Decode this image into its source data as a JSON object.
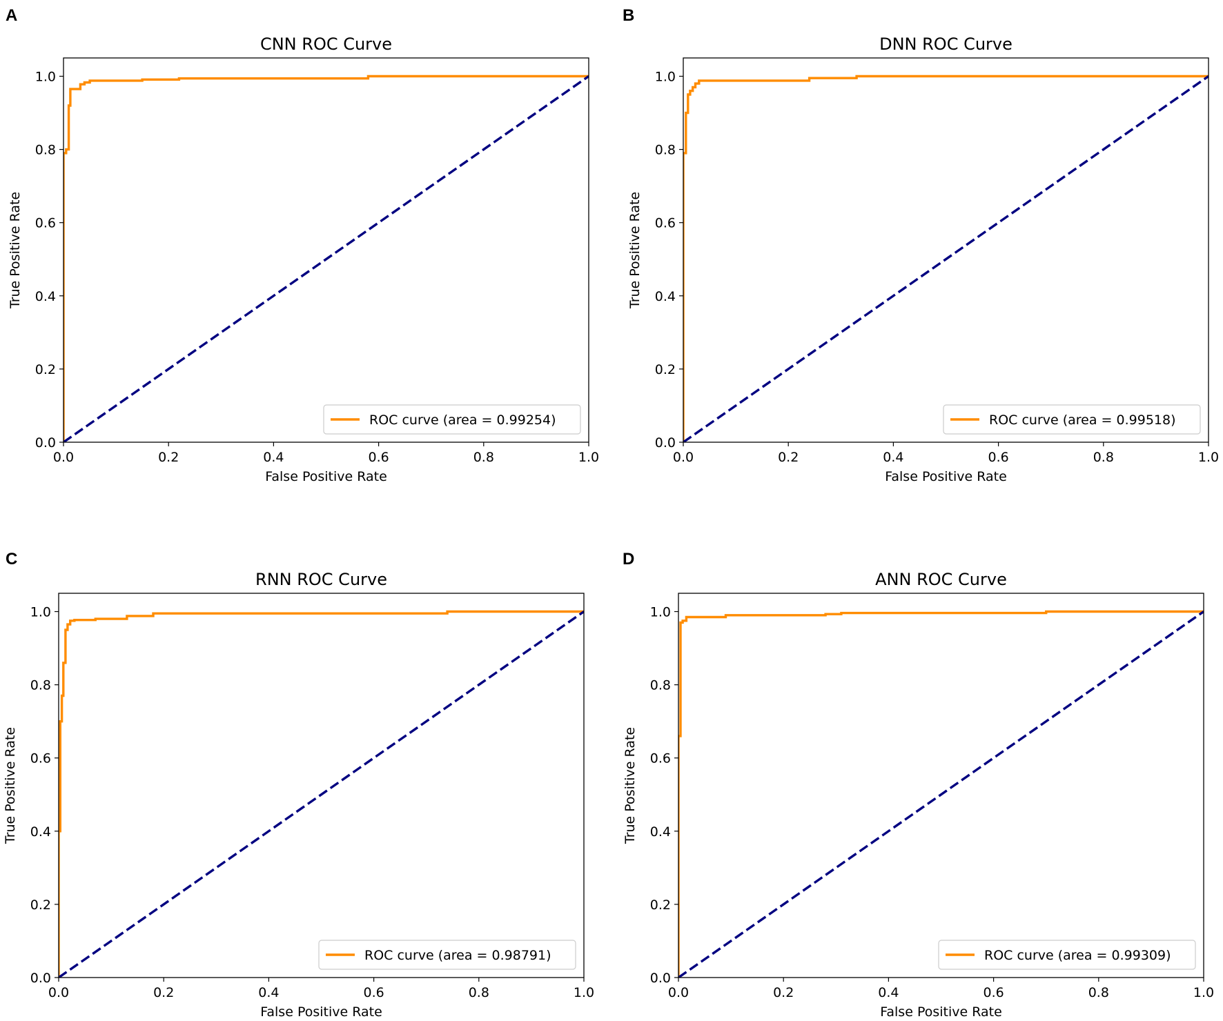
{
  "colors": {
    "roc": "#ff8c00",
    "diagonal": "#000080",
    "axes": "#000000",
    "legend_border": "#cccccc"
  },
  "chart_data": [
    {
      "panel": "A",
      "type": "line",
      "title": "CNN ROC Curve",
      "xlabel": "False Positive Rate",
      "ylabel": "True Positive Rate",
      "xlim": [
        -0.0,
        1.0
      ],
      "ylim": [
        0.0,
        1.05
      ],
      "xticks": [
        "0.0",
        "0.2",
        "0.4",
        "0.6",
        "0.8",
        "1.0"
      ],
      "yticks": [
        "0.0",
        "0.2",
        "0.4",
        "0.6",
        "0.8",
        "1.0"
      ],
      "grid": false,
      "legend_position": "lower right",
      "series": [
        {
          "name": "ROC curve (area = 0.99254)",
          "fpr": [
            0,
            0,
            0.005,
            0.005,
            0.01,
            0.01,
            0.013,
            0.013,
            0.032,
            0.032,
            0.04,
            0.04,
            0.05,
            0.05,
            0.15,
            0.15,
            0.22,
            0.22,
            0.58,
            0.58,
            1.0
          ],
          "tpr": [
            0,
            0.79,
            0.79,
            0.8,
            0.8,
            0.92,
            0.92,
            0.965,
            0.965,
            0.978,
            0.978,
            0.983,
            0.983,
            0.988,
            0.988,
            0.991,
            0.991,
            0.994,
            0.994,
            1.0,
            1.0
          ]
        },
        {
          "name": "chance",
          "fpr": [
            0,
            1
          ],
          "tpr": [
            0,
            1
          ]
        }
      ]
    },
    {
      "panel": "B",
      "type": "line",
      "title": "DNN ROC Curve",
      "xlabel": "False Positive Rate",
      "ylabel": "True Positive Rate",
      "xlim": [
        -0.0,
        1.0
      ],
      "ylim": [
        0.0,
        1.05
      ],
      "xticks": [
        "0.0",
        "0.2",
        "0.4",
        "0.6",
        "0.8",
        "1.0"
      ],
      "yticks": [
        "0.0",
        "0.2",
        "0.4",
        "0.6",
        "0.8",
        "1.0"
      ],
      "grid": false,
      "legend_position": "lower right",
      "series": [
        {
          "name": "ROC curve (area = 0.99518)",
          "fpr": [
            0,
            0,
            0.005,
            0.005,
            0.009,
            0.009,
            0.013,
            0.013,
            0.018,
            0.018,
            0.023,
            0.023,
            0.03,
            0.03,
            0.24,
            0.24,
            0.33,
            0.33,
            1.0
          ],
          "tpr": [
            0,
            0.79,
            0.79,
            0.9,
            0.9,
            0.95,
            0.95,
            0.96,
            0.96,
            0.97,
            0.97,
            0.98,
            0.98,
            0.988,
            0.988,
            0.995,
            0.995,
            1.0,
            1.0
          ]
        },
        {
          "name": "chance",
          "fpr": [
            0,
            1
          ],
          "tpr": [
            0,
            1
          ]
        }
      ]
    },
    {
      "panel": "C",
      "type": "line",
      "title": "RNN ROC Curve",
      "xlabel": "False Positive Rate",
      "ylabel": "True Positive Rate",
      "xlim": [
        -0.0,
        1.0
      ],
      "ylim": [
        0.0,
        1.05
      ],
      "xticks": [
        "0.0",
        "0.2",
        "0.4",
        "0.6",
        "0.8",
        "1.0"
      ],
      "yticks": [
        "0.0",
        "0.2",
        "0.4",
        "0.6",
        "0.8",
        "1.0"
      ],
      "grid": false,
      "legend_position": "lower right",
      "series": [
        {
          "name": "ROC curve (area = 0.98791)",
          "fpr": [
            0,
            0,
            0.003,
            0.003,
            0.006,
            0.006,
            0.009,
            0.009,
            0.013,
            0.013,
            0.017,
            0.017,
            0.022,
            0.022,
            0.03,
            0.03,
            0.07,
            0.07,
            0.13,
            0.13,
            0.18,
            0.18,
            0.74,
            0.74,
            1.0
          ],
          "tpr": [
            0,
            0.4,
            0.4,
            0.7,
            0.7,
            0.77,
            0.77,
            0.86,
            0.86,
            0.95,
            0.95,
            0.965,
            0.965,
            0.975,
            0.975,
            0.977,
            0.977,
            0.98,
            0.98,
            0.988,
            0.988,
            0.995,
            0.995,
            1.0,
            1.0
          ]
        },
        {
          "name": "chance",
          "fpr": [
            0,
            1
          ],
          "tpr": [
            0,
            1
          ]
        }
      ]
    },
    {
      "panel": "D",
      "type": "line",
      "title": "ANN ROC Curve",
      "xlabel": "False Positive Rate",
      "ylabel": "True Positive Rate",
      "xlim": [
        -0.0,
        1.0
      ],
      "ylim": [
        0.0,
        1.05
      ],
      "xticks": [
        "0.0",
        "0.2",
        "0.4",
        "0.6",
        "0.8",
        "1.0"
      ],
      "yticks": [
        "0.0",
        "0.2",
        "0.4",
        "0.6",
        "0.8",
        "1.0"
      ],
      "grid": false,
      "legend_position": "lower right",
      "series": [
        {
          "name": "ROC curve (area = 0.99309)",
          "fpr": [
            0,
            0,
            0.004,
            0.004,
            0.008,
            0.008,
            0.015,
            0.015,
            0.09,
            0.09,
            0.28,
            0.28,
            0.31,
            0.31,
            0.7,
            0.7,
            1.0
          ],
          "tpr": [
            0,
            0.66,
            0.66,
            0.97,
            0.97,
            0.975,
            0.975,
            0.985,
            0.985,
            0.99,
            0.99,
            0.993,
            0.993,
            0.996,
            0.996,
            1.0,
            1.0
          ]
        },
        {
          "name": "chance",
          "fpr": [
            0,
            1
          ],
          "tpr": [
            0,
            1
          ]
        }
      ]
    }
  ]
}
